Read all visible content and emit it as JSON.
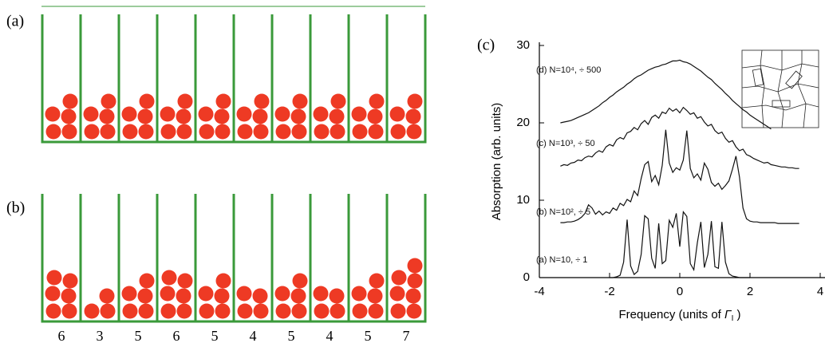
{
  "panel_a": {
    "label": "(a)",
    "counts": [
      5,
      5,
      5,
      5,
      5,
      5,
      5,
      5,
      5,
      5
    ]
  },
  "panel_b": {
    "label": "(b)",
    "counts": [
      6,
      3,
      5,
      6,
      5,
      4,
      5,
      4,
      5,
      7
    ]
  },
  "chart_data": {
    "type": "line",
    "panel_label": "(c)",
    "xlabel": [
      "Frequency (units of  ",
      "Γ",
      "I",
      " )"
    ],
    "ylabel": "Absorption (arb. units)",
    "xlim": [
      -4,
      4
    ],
    "ylim": [
      0,
      30
    ],
    "xticks": [
      -4,
      -2,
      0,
      2,
      4
    ],
    "yticks": [
      0,
      10,
      20,
      30
    ],
    "grid": false,
    "x": [
      -3.4,
      -3.3,
      -3.2,
      -3.1,
      -3.0,
      -2.9,
      -2.8,
      -2.7,
      -2.6,
      -2.5,
      -2.4,
      -2.3,
      -2.2,
      -2.1,
      -2.0,
      -1.9,
      -1.8,
      -1.7,
      -1.6,
      -1.5,
      -1.4,
      -1.3,
      -1.2,
      -1.1,
      -1.0,
      -0.9,
      -0.8,
      -0.7,
      -0.6,
      -0.5,
      -0.4,
      -0.3,
      -0.2,
      -0.1,
      0.0,
      0.1,
      0.2,
      0.3,
      0.4,
      0.5,
      0.6,
      0.7,
      0.8,
      0.9,
      1.0,
      1.1,
      1.2,
      1.3,
      1.4,
      1.5,
      1.6,
      1.7,
      1.8,
      1.9,
      2.0,
      2.1,
      2.2,
      2.3,
      2.4,
      2.5,
      2.6,
      2.7,
      2.8,
      2.9,
      3.0,
      3.1,
      3.2,
      3.3,
      3.4
    ],
    "series": [
      {
        "name": "(d) N=10⁴, ÷ 500",
        "color": "#111111",
        "values": [
          20.0,
          20.1,
          20.2,
          20.3,
          20.5,
          20.7,
          20.9,
          21.1,
          21.3,
          21.6,
          21.9,
          22.2,
          22.6,
          22.9,
          23.3,
          23.6,
          24.0,
          24.3,
          24.6,
          25.0,
          25.3,
          25.7,
          26.0,
          26.2,
          26.5,
          26.8,
          27.0,
          27.2,
          27.3,
          27.5,
          27.6,
          27.8,
          28.0,
          28.0,
          28.1,
          27.9,
          27.8,
          27.6,
          27.3,
          27.0,
          26.7,
          26.3,
          25.9,
          25.6,
          25.1,
          24.7,
          24.3,
          23.8,
          23.4,
          22.9,
          22.5,
          22.1,
          21.7,
          21.4,
          21.0,
          20.7,
          20.4,
          20.1,
          19.8,
          19.5,
          19.2,
          null,
          null,
          null,
          null,
          null,
          null,
          null,
          null
        ]
      },
      {
        "name": "(c) N=10³, ÷ 50",
        "color": "#111111",
        "values": [
          14.4,
          14.6,
          14.5,
          14.8,
          14.9,
          15.2,
          15.1,
          15.5,
          15.7,
          15.6,
          16.1,
          16.4,
          16.2,
          16.9,
          17.2,
          17.0,
          17.8,
          18.1,
          17.9,
          18.7,
          18.9,
          19.4,
          19.1,
          19.9,
          20.3,
          19.8,
          20.7,
          21.0,
          20.6,
          21.4,
          21.2,
          21.9,
          21.5,
          21.8,
          21.3,
          22.0,
          21.6,
          21.1,
          21.3,
          20.6,
          20.8,
          20.1,
          19.6,
          19.8,
          19.0,
          18.6,
          18.8,
          18.0,
          17.5,
          17.7,
          16.9,
          16.4,
          16.6,
          15.9,
          15.7,
          15.4,
          15.2,
          15.0,
          14.8,
          14.9,
          14.6,
          14.5,
          14.4,
          14.3,
          14.3,
          14.2,
          14.2,
          14.1,
          14.1
        ]
      },
      {
        "name": "(b) N=10², ÷ 5",
        "color": "#111111",
        "values": [
          7.1,
          7.1,
          7.2,
          7.2,
          7.3,
          7.5,
          7.8,
          8.3,
          9.4,
          9.0,
          8.2,
          8.6,
          8.1,
          8.5,
          8.3,
          9.0,
          8.7,
          9.6,
          9.3,
          10.1,
          9.8,
          11.2,
          10.6,
          12.8,
          14.6,
          15.0,
          12.4,
          13.2,
          12.0,
          14.5,
          19.1,
          14.8,
          13.6,
          14.2,
          13.9,
          15.2,
          19.0,
          14.1,
          12.9,
          13.4,
          12.6,
          14.8,
          14.0,
          12.3,
          11.8,
          12.2,
          11.4,
          11.9,
          12.5,
          14.0,
          15.7,
          13.0,
          9.0,
          7.6,
          7.3,
          7.2,
          7.2,
          7.1,
          7.1,
          7.1,
          7.1,
          7.1,
          7.0,
          7.0,
          7.0,
          7.0,
          7.0,
          7.0,
          7.0
        ]
      },
      {
        "name": "(a) N=10, ÷ 1",
        "color": "#111111",
        "values": [
          null,
          null,
          null,
          null,
          null,
          null,
          null,
          null,
          null,
          null,
          null,
          null,
          null,
          null,
          0.0,
          0.0,
          0.1,
          0.3,
          2.0,
          7.5,
          1.5,
          0.4,
          0.8,
          3.0,
          8.0,
          7.6,
          2.5,
          1.2,
          7.0,
          1.8,
          2.2,
          7.4,
          6.5,
          8.3,
          4.0,
          8.5,
          7.9,
          1.8,
          1.0,
          4.5,
          7.2,
          1.3,
          3.0,
          7.3,
          1.4,
          1.2,
          7.2,
          2.0,
          0.5,
          0.2,
          0.1,
          0.0,
          0.0,
          0.0,
          0.0,
          null,
          null,
          null,
          null,
          null,
          null,
          null,
          null,
          null,
          null,
          null,
          null,
          null,
          null
        ]
      }
    ]
  }
}
